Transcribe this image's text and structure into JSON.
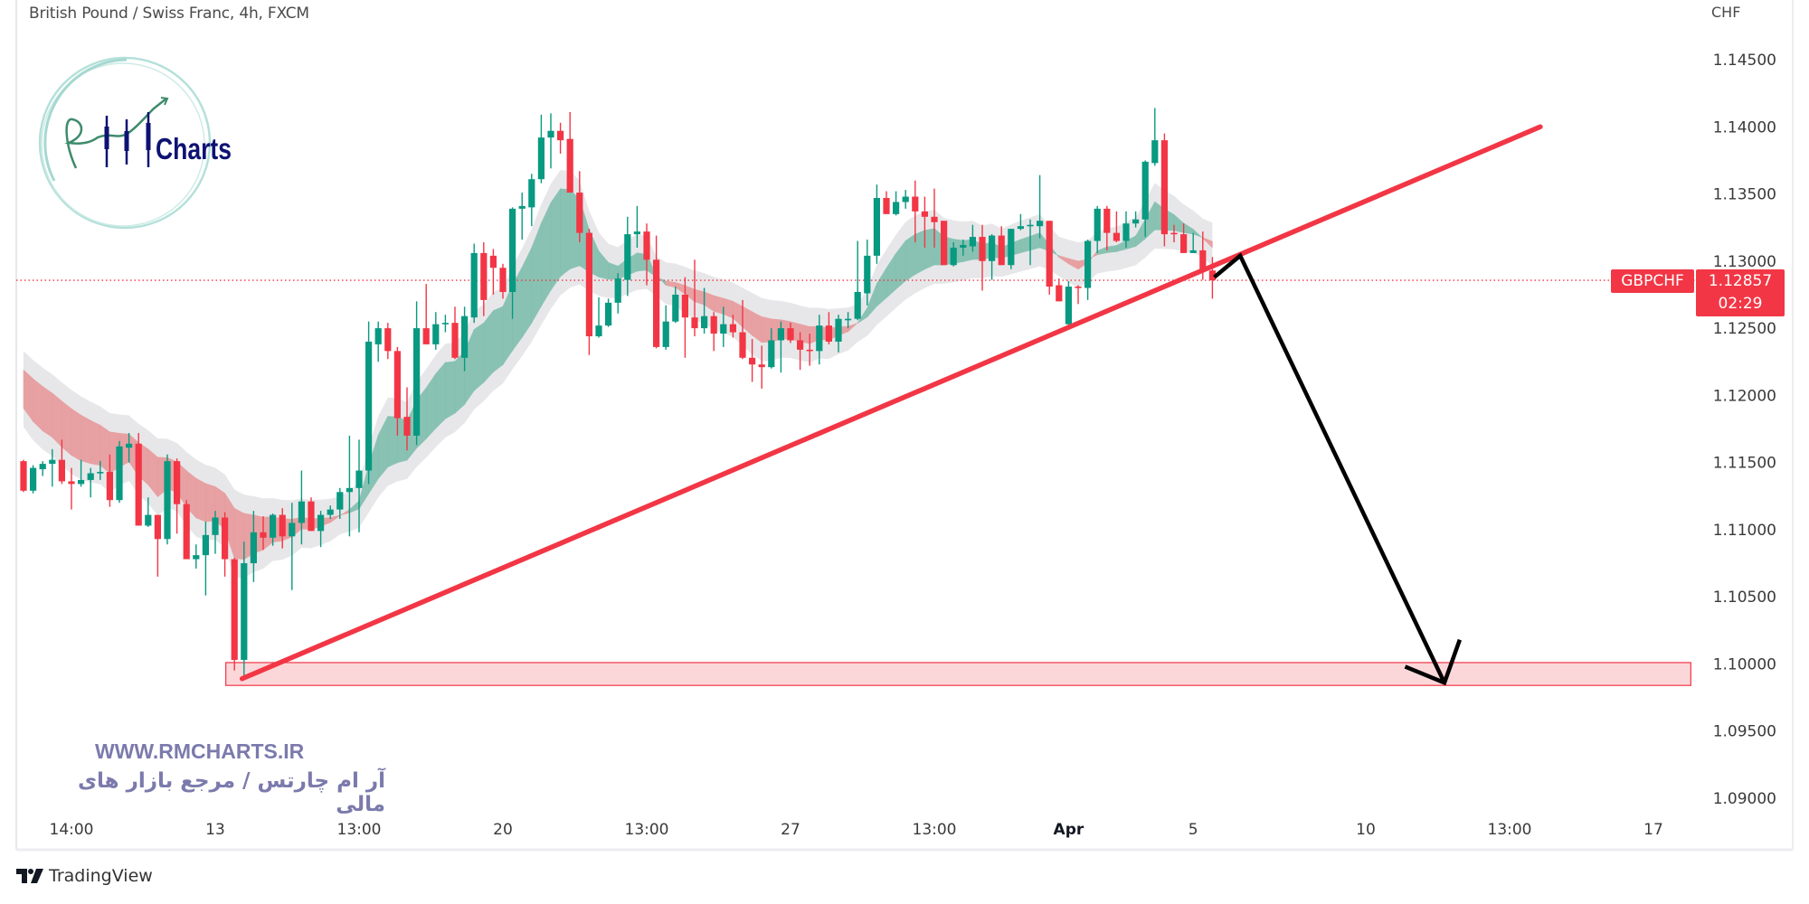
{
  "header": {
    "title": "British Pound / Swiss Franc, 4h, FXCM",
    "currency": "CHF"
  },
  "price_label": {
    "symbol": "GBPCHF",
    "price": "1.12857",
    "countdown": "02:29"
  },
  "logo": {
    "text": "Charts",
    "monogram": "RM"
  },
  "watermark": {
    "url": "WWW.RMCHARTS.IR",
    "tagline": "آر ام چارتس / مرجع بازار های مالی"
  },
  "footer": {
    "brand": "TradingView"
  },
  "colors": {
    "up": "#089981",
    "down": "#f23645",
    "annotation_line": "#f23645",
    "arrow": "#000000",
    "watermark": "#7b7aac",
    "logo_navy": "#0d1273"
  },
  "chart_data": {
    "type": "candlestick",
    "title": "British Pound / Swiss Franc, 4h, FXCM",
    "symbol": "GBPCHF",
    "interval": "4h",
    "ylabel": "CHF",
    "ylim": [
      1.0875,
      1.1475
    ],
    "grid": false,
    "y_ticks": [
      {
        "value": 1.145,
        "label": "1.14500"
      },
      {
        "value": 1.14,
        "label": "1.14000"
      },
      {
        "value": 1.135,
        "label": "1.13500"
      },
      {
        "value": 1.13,
        "label": "1.13000"
      },
      {
        "value": 1.125,
        "label": "1.12500"
      },
      {
        "value": 1.12,
        "label": "1.12000"
      },
      {
        "value": 1.115,
        "label": "1.11500"
      },
      {
        "value": 1.11,
        "label": "1.11000"
      },
      {
        "value": 1.105,
        "label": "1.10500"
      },
      {
        "value": 1.1,
        "label": "1.10000"
      },
      {
        "value": 1.095,
        "label": "1.09500"
      },
      {
        "value": 1.09,
        "label": "1.09000"
      }
    ],
    "x_ticks": [
      {
        "bar": 5,
        "label": "14:00",
        "bold": false
      },
      {
        "bar": 20,
        "label": "13",
        "bold": false
      },
      {
        "bar": 35,
        "label": "13:00",
        "bold": false
      },
      {
        "bar": 50,
        "label": "20",
        "bold": false
      },
      {
        "bar": 65,
        "label": "13:00",
        "bold": false
      },
      {
        "bar": 80,
        "label": "27",
        "bold": false
      },
      {
        "bar": 95,
        "label": "13:00",
        "bold": false
      },
      {
        "bar": 109,
        "label": "Apr",
        "bold": true
      },
      {
        "bar": 122,
        "label": "5",
        "bold": false
      },
      {
        "bar": 140,
        "label": "10",
        "bold": false
      },
      {
        "bar": 155,
        "label": "13:00",
        "bold": false
      },
      {
        "bar": 170,
        "label": "17",
        "bold": false
      }
    ],
    "last_price": 1.12857,
    "ohlc_columns": [
      "open",
      "high",
      "low",
      "close"
    ],
    "ohlc": [
      [
        1.1151,
        1.1152,
        1.1128,
        1.1129
      ],
      [
        1.1129,
        1.1148,
        1.1127,
        1.1146
      ],
      [
        1.1145,
        1.1151,
        1.114,
        1.1149
      ],
      [
        1.1149,
        1.116,
        1.1132,
        1.1152
      ],
      [
        1.1152,
        1.1167,
        1.1134,
        1.1136
      ],
      [
        1.1136,
        1.1146,
        1.1115,
        1.1134
      ],
      [
        1.1134,
        1.1152,
        1.1132,
        1.1137
      ],
      [
        1.1137,
        1.1146,
        1.1124,
        1.1142
      ],
      [
        1.1142,
        1.1151,
        1.1137,
        1.1143
      ],
      [
        1.1143,
        1.1156,
        1.1117,
        1.1122
      ],
      [
        1.1122,
        1.1166,
        1.112,
        1.1162
      ],
      [
        1.1161,
        1.1172,
        1.115,
        1.1164
      ],
      [
        1.1164,
        1.1172,
        1.1103,
        1.1103
      ],
      [
        1.1103,
        1.1124,
        1.1102,
        1.1111
      ],
      [
        1.1111,
        1.1111,
        1.1065,
        1.1093
      ],
      [
        1.1093,
        1.1156,
        1.1089,
        1.1151
      ],
      [
        1.1151,
        1.1153,
        1.1097,
        1.1119
      ],
      [
        1.1119,
        1.1122,
        1.108,
        1.1078
      ],
      [
        1.1078,
        1.1089,
        1.1071,
        1.1081
      ],
      [
        1.1081,
        1.1106,
        1.1051,
        1.1096
      ],
      [
        1.1096,
        1.1114,
        1.1082,
        1.1109
      ],
      [
        1.1109,
        1.1113,
        1.1065,
        1.1078
      ],
      [
        1.1078,
        1.1079,
        1.0995,
        1.1003
      ],
      [
        1.1003,
        1.1091,
        1.0989,
        1.1075
      ],
      [
        1.1075,
        1.1114,
        1.1061,
        1.1098
      ],
      [
        1.1098,
        1.111,
        1.1085,
        1.1094
      ],
      [
        1.1094,
        1.1112,
        1.1088,
        1.1111
      ],
      [
        1.1111,
        1.1116,
        1.1086,
        1.1095
      ],
      [
        1.1095,
        1.112,
        1.1055,
        1.1105
      ],
      [
        1.1105,
        1.1144,
        1.1089,
        1.1121
      ],
      [
        1.1121,
        1.1124,
        1.1099,
        1.1099
      ],
      [
        1.1099,
        1.1114,
        1.1087,
        1.1111
      ],
      [
        1.1111,
        1.1118,
        1.1108,
        1.1115
      ],
      [
        1.1115,
        1.1131,
        1.1108,
        1.1128
      ],
      [
        1.1128,
        1.117,
        1.1095,
        1.1131
      ],
      [
        1.1131,
        1.1167,
        1.1098,
        1.1144
      ],
      [
        1.1144,
        1.1255,
        1.1134,
        1.124
      ],
      [
        1.1238,
        1.1255,
        1.1225,
        1.125
      ],
      [
        1.125,
        1.1254,
        1.1227,
        1.1233
      ],
      [
        1.1233,
        1.1236,
        1.117,
        1.1183
      ],
      [
        1.1184,
        1.1206,
        1.1159,
        1.117
      ],
      [
        1.117,
        1.127,
        1.1163,
        1.125
      ],
      [
        1.125,
        1.1283,
        1.1239,
        1.1238
      ],
      [
        1.1238,
        1.1262,
        1.1234,
        1.1253
      ],
      [
        1.1253,
        1.126,
        1.1247,
        1.1254
      ],
      [
        1.1254,
        1.1266,
        1.1227,
        1.1228
      ],
      [
        1.1228,
        1.1266,
        1.1218,
        1.1259
      ],
      [
        1.1258,
        1.1313,
        1.1254,
        1.1306
      ],
      [
        1.1306,
        1.1314,
        1.1259,
        1.1271
      ],
      [
        1.1304,
        1.1309,
        1.1275,
        1.1295
      ],
      [
        1.1295,
        1.1298,
        1.1272,
        1.1277
      ],
      [
        1.1277,
        1.134,
        1.1257,
        1.1339
      ],
      [
        1.1339,
        1.1351,
        1.1316,
        1.1341
      ],
      [
        1.134,
        1.1365,
        1.1326,
        1.1361
      ],
      [
        1.1361,
        1.1409,
        1.1358,
        1.1392
      ],
      [
        1.1392,
        1.141,
        1.1369,
        1.1397
      ],
      [
        1.1397,
        1.1403,
        1.138,
        1.139
      ],
      [
        1.1391,
        1.1411,
        1.1351,
        1.1351
      ],
      [
        1.1351,
        1.1367,
        1.1314,
        1.1321
      ],
      [
        1.1321,
        1.1324,
        1.123,
        1.1244
      ],
      [
        1.1244,
        1.1273,
        1.1243,
        1.1252
      ],
      [
        1.1252,
        1.1272,
        1.1251,
        1.1269
      ],
      [
        1.1269,
        1.1291,
        1.1261,
        1.1287
      ],
      [
        1.1286,
        1.1333,
        1.1274,
        1.132
      ],
      [
        1.132,
        1.1341,
        1.131,
        1.1322
      ],
      [
        1.1322,
        1.1328,
        1.1282,
        1.1301
      ],
      [
        1.1301,
        1.1319,
        1.1235,
        1.1236
      ],
      [
        1.1236,
        1.1267,
        1.1234,
        1.1255
      ],
      [
        1.1255,
        1.1281,
        1.1254,
        1.1275
      ],
      [
        1.1275,
        1.1288,
        1.1228,
        1.1258
      ],
      [
        1.1258,
        1.1301,
        1.1244,
        1.125
      ],
      [
        1.125,
        1.128,
        1.1246,
        1.1259
      ],
      [
        1.1259,
        1.1262,
        1.1233,
        1.1246
      ],
      [
        1.1246,
        1.1266,
        1.1236,
        1.1253
      ],
      [
        1.1253,
        1.126,
        1.1243,
        1.1247
      ],
      [
        1.1247,
        1.1271,
        1.1227,
        1.1228
      ],
      [
        1.1228,
        1.1242,
        1.121,
        1.1223
      ],
      [
        1.1223,
        1.1237,
        1.1205,
        1.1221
      ],
      [
        1.1221,
        1.125,
        1.122,
        1.1241
      ],
      [
        1.1241,
        1.1255,
        1.1217,
        1.125
      ],
      [
        1.125,
        1.1254,
        1.1239,
        1.1241
      ],
      [
        1.1241,
        1.1247,
        1.1219,
        1.1234
      ],
      [
        1.1234,
        1.1246,
        1.1222,
        1.1233
      ],
      [
        1.1233,
        1.126,
        1.1223,
        1.1252
      ],
      [
        1.1252,
        1.1262,
        1.1238,
        1.124
      ],
      [
        1.124,
        1.126,
        1.1232,
        1.1257
      ],
      [
        1.1257,
        1.1262,
        1.125,
        1.1257
      ],
      [
        1.1257,
        1.1315,
        1.1256,
        1.1277
      ],
      [
        1.1276,
        1.1316,
        1.1267,
        1.1304
      ],
      [
        1.1304,
        1.1357,
        1.1298,
        1.1347
      ],
      [
        1.1347,
        1.1352,
        1.1335,
        1.1335
      ],
      [
        1.1335,
        1.1352,
        1.1334,
        1.1344
      ],
      [
        1.1344,
        1.1353,
        1.1339,
        1.1348
      ],
      [
        1.1348,
        1.136,
        1.1314,
        1.1337
      ],
      [
        1.1337,
        1.1348,
        1.131,
        1.1333
      ],
      [
        1.1333,
        1.1354,
        1.131,
        1.1329
      ],
      [
        1.133,
        1.133,
        1.1298,
        1.1297
      ],
      [
        1.1297,
        1.1314,
        1.1296,
        1.131
      ],
      [
        1.131,
        1.1316,
        1.1304,
        1.1312
      ],
      [
        1.1311,
        1.1327,
        1.1307,
        1.1318
      ],
      [
        1.1318,
        1.1327,
        1.1278,
        1.13
      ],
      [
        1.13,
        1.132,
        1.1286,
        1.1319
      ],
      [
        1.1319,
        1.1326,
        1.1297,
        1.1297
      ],
      [
        1.1297,
        1.1324,
        1.1294,
        1.1324
      ],
      [
        1.1324,
        1.1335,
        1.1323,
        1.1326
      ],
      [
        1.1326,
        1.1331,
        1.1297,
        1.1327
      ],
      [
        1.1326,
        1.1364,
        1.1317,
        1.133
      ],
      [
        1.133,
        1.133,
        1.1275,
        1.1281
      ],
      [
        1.1282,
        1.1287,
        1.127,
        1.127
      ],
      [
        1.1253,
        1.1285,
        1.1252,
        1.1281
      ],
      [
        1.1281,
        1.1282,
        1.1268,
        1.128
      ],
      [
        1.128,
        1.1316,
        1.1271,
        1.1315
      ],
      [
        1.1315,
        1.1341,
        1.1306,
        1.1339
      ],
      [
        1.1339,
        1.1341,
        1.1308,
        1.1321
      ],
      [
        1.1321,
        1.1337,
        1.1314,
        1.1315
      ],
      [
        1.1315,
        1.1337,
        1.131,
        1.1328
      ],
      [
        1.1328,
        1.1337,
        1.1325,
        1.1331
      ],
      [
        1.1331,
        1.1375,
        1.1318,
        1.1374
      ],
      [
        1.1373,
        1.1414,
        1.1371,
        1.139
      ],
      [
        1.139,
        1.1395,
        1.1311,
        1.132
      ],
      [
        1.1321,
        1.1327,
        1.1314,
        1.132
      ],
      [
        1.132,
        1.1328,
        1.1306,
        1.1306
      ],
      [
        1.1306,
        1.1321,
        1.1306,
        1.1308
      ],
      [
        1.1308,
        1.1322,
        1.1286,
        1.1293
      ],
      [
        1.1293,
        1.1303,
        1.1272,
        1.12857
      ]
    ],
    "annotations": {
      "trendline": {
        "from": {
          "bar": 22.8,
          "price": 1.0989
        },
        "to": {
          "bar": 158.2,
          "price": 1.14
        }
      },
      "support_zone": {
        "from_bar": 21.1,
        "to_bar": 173.9,
        "price_low": 1.0984,
        "price_high": 1.1001
      },
      "arrow_path": [
        {
          "bar": 124.2,
          "price": 1.1288
        },
        {
          "bar": 126.9,
          "price": 1.1304
        },
        {
          "bar": 148.2,
          "price": 1.0986
        }
      ],
      "arrow_head": [
        {
          "bar": 144.1,
          "price": 1.0998
        },
        {
          "bar": 148.2,
          "price": 1.0986
        },
        {
          "bar": 149.8,
          "price": 1.1018
        }
      ]
    }
  }
}
